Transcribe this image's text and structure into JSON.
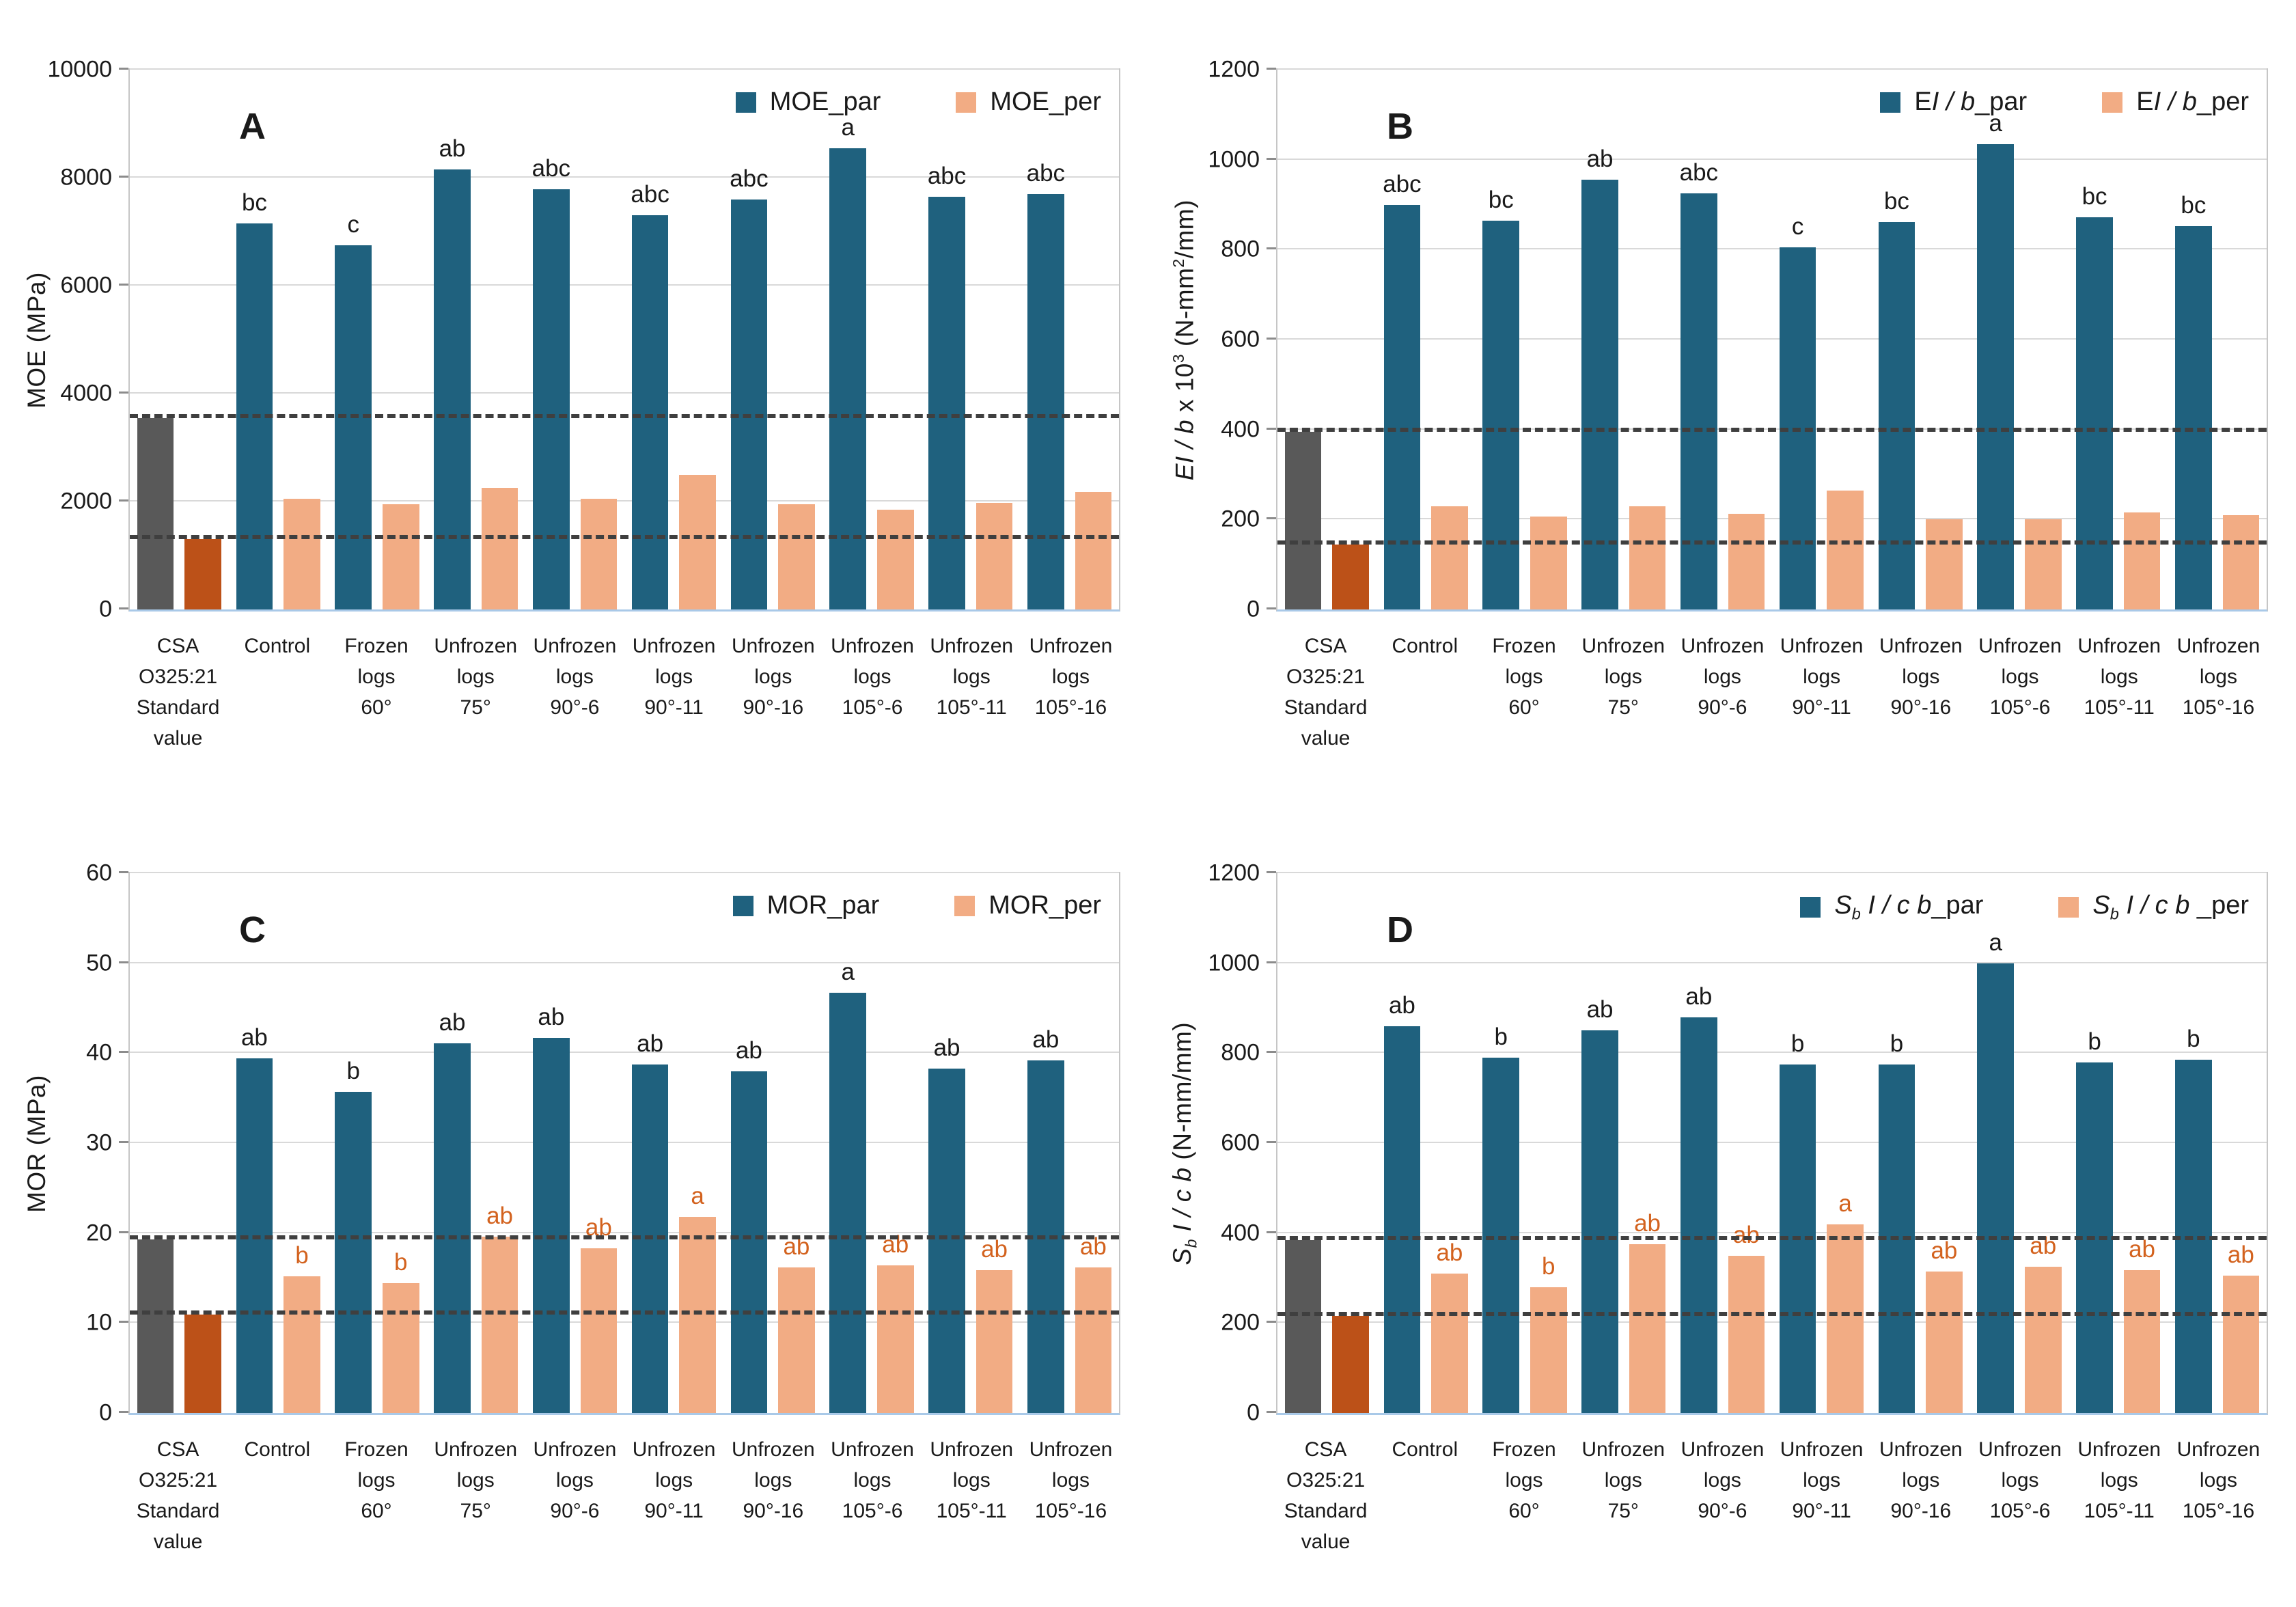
{
  "page": {
    "background": "#ffffff"
  },
  "chart_data": {
    "type": "bar",
    "layout": "2x2-small-multiples",
    "grid": true,
    "legend_position": "top-right-inside",
    "series_colors": {
      "par": "#1F617E",
      "per": "#F2AC84",
      "standard_par": "#595959",
      "standard_per": "#BC5118"
    },
    "dashed_line_color": "#3F3F3F",
    "per_letter_color": "#D3621E",
    "par_letter_color": "#1A1A1A",
    "shared_categories": [
      [
        "CSA",
        "O325:21",
        "Standard",
        "value"
      ],
      [
        "Control"
      ],
      [
        "Frozen",
        "logs",
        "60°"
      ],
      [
        "Unfrozen",
        "logs",
        "75°"
      ],
      [
        "Unfrozen",
        "logs",
        "90°-6"
      ],
      [
        "Unfrozen",
        "logs",
        "90°-11"
      ],
      [
        "Unfrozen",
        "logs",
        "90°-16"
      ],
      [
        "Unfrozen",
        "logs",
        "105°-6"
      ],
      [
        "Unfrozen",
        "logs",
        "105°-11"
      ],
      [
        "Unfrozen",
        "logs",
        "105°-16"
      ]
    ],
    "panels": [
      {
        "letter": "A",
        "ylabel_parts": [
          {
            "text": "MOE (MPa)"
          }
        ],
        "ylim": [
          0,
          10000
        ],
        "yticks": [
          0,
          2000,
          4000,
          6000,
          8000,
          10000
        ],
        "legend": [
          {
            "series": "par",
            "parts": [
              {
                "text": "MOE_par"
              }
            ]
          },
          {
            "series": "per",
            "parts": [
              {
                "text": "MOE_per"
              }
            ]
          }
        ],
        "standard_bars": {
          "par": 3550,
          "per": 1300
        },
        "dashed_lines": [
          3550,
          1300
        ],
        "par": {
          "values": [
            7150,
            6750,
            8150,
            7780,
            7300,
            7600,
            8550,
            7650,
            7700
          ],
          "letters": [
            "bc",
            "c",
            "ab",
            "abc",
            "abc",
            "abc",
            "a",
            "abc",
            "abc"
          ]
        },
        "per": {
          "values": [
            2050,
            1950,
            2250,
            2050,
            2500,
            1950,
            1850,
            1980,
            2180
          ],
          "letters": [
            "",
            "",
            "",
            "",
            "",
            "",
            "",
            "",
            ""
          ]
        }
      },
      {
        "letter": "B",
        "ylabel_parts": [
          {
            "text": "EI / b",
            "italic": true
          },
          {
            "text": " x 10"
          },
          {
            "text": "3",
            "sup": true
          },
          {
            "text": " (N-mm"
          },
          {
            "text": "2",
            "sup": true
          },
          {
            "text": "/mm)"
          }
        ],
        "ylim": [
          0,
          1200
        ],
        "yticks": [
          0,
          200,
          400,
          600,
          800,
          1000,
          1200
        ],
        "legend": [
          {
            "series": "par",
            "parts": [
              {
                "text": "E"
              },
              {
                "text": "I / b",
                "italic": true
              },
              {
                "text": "_par"
              }
            ]
          },
          {
            "series": "per",
            "parts": [
              {
                "text": "E"
              },
              {
                "text": "I / b",
                "italic": true
              },
              {
                "text": "_per"
              }
            ]
          }
        ],
        "standard_bars": {
          "par": 395,
          "per": 145
        },
        "dashed_lines": [
          395,
          145
        ],
        "par": {
          "values": [
            900,
            865,
            955,
            925,
            805,
            862,
            1035,
            872,
            852
          ],
          "letters": [
            "abc",
            "bc",
            "ab",
            "abc",
            "c",
            "bc",
            "a",
            "bc",
            "bc"
          ]
        },
        "per": {
          "values": [
            230,
            207,
            230,
            212,
            265,
            200,
            200,
            215,
            210
          ],
          "letters": [
            "",
            "",
            "",
            "",
            "",
            "",
            "",
            "",
            ""
          ]
        }
      },
      {
        "letter": "C",
        "ylabel_parts": [
          {
            "text": "MOR (MPa)"
          }
        ],
        "ylim": [
          0,
          60
        ],
        "yticks": [
          0,
          10,
          20,
          30,
          40,
          50,
          60
        ],
        "legend": [
          {
            "series": "par",
            "parts": [
              {
                "text": "MOR_par"
              }
            ]
          },
          {
            "series": "per",
            "parts": [
              {
                "text": "MOR_per"
              }
            ]
          }
        ],
        "standard_bars": {
          "par": 19.3,
          "per": 10.9
        },
        "dashed_lines": [
          19.3,
          10.9
        ],
        "par": {
          "values": [
            39.4,
            35.7,
            41.1,
            41.7,
            38.7,
            38.0,
            46.7,
            38.3,
            39.2
          ],
          "letters": [
            "ab",
            "b",
            "ab",
            "ab",
            "ab",
            "ab",
            "a",
            "ab",
            "ab"
          ]
        },
        "per": {
          "values": [
            15.2,
            14.4,
            19.6,
            18.3,
            21.8,
            16.2,
            16.4,
            15.9,
            16.2
          ],
          "letters": [
            "b",
            "b",
            "ab",
            "ab",
            "a",
            "ab",
            "ab",
            "ab",
            "ab"
          ]
        }
      },
      {
        "letter": "D",
        "ylabel_parts": [
          {
            "text": "S",
            "italic": true
          },
          {
            "text": "b",
            "italic": true,
            "sub": true
          },
          {
            "text": " I / c b",
            "italic": true
          },
          {
            "text": " (N-mm/mm)"
          }
        ],
        "ylim": [
          0,
          1200
        ],
        "yticks": [
          0,
          200,
          400,
          600,
          800,
          1000,
          1200
        ],
        "legend": [
          {
            "series": "par",
            "parts": [
              {
                "text": "S",
                "italic": true
              },
              {
                "text": "b",
                "italic": true,
                "sub": true
              },
              {
                "text": " I / c b",
                "italic": true
              },
              {
                "text": "_par"
              }
            ]
          },
          {
            "series": "per",
            "parts": [
              {
                "text": "S",
                "italic": true
              },
              {
                "text": "b",
                "italic": true,
                "sub": true
              },
              {
                "text": " I / c b",
                "italic": true
              },
              {
                "text": " _per"
              }
            ]
          }
        ],
        "standard_bars": {
          "par": 385,
          "per": 215
        },
        "dashed_lines": [
          385,
          215
        ],
        "par": {
          "values": [
            860,
            790,
            850,
            880,
            775,
            775,
            1000,
            780,
            785
          ],
          "letters": [
            "ab",
            "b",
            "ab",
            "ab",
            "b",
            "b",
            "a",
            "b",
            "b"
          ]
        },
        "per": {
          "values": [
            310,
            280,
            375,
            350,
            420,
            315,
            325,
            318,
            305
          ],
          "letters": [
            "ab",
            "b",
            "ab",
            "ab",
            "a",
            "ab",
            "ab",
            "ab",
            "ab"
          ]
        }
      }
    ]
  }
}
